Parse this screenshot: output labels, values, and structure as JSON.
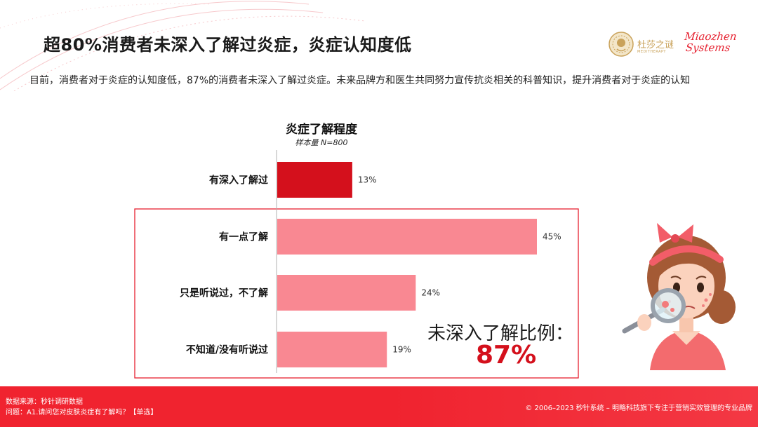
{
  "slide": {
    "title": "超80%消费者未深入了解过炎症，炎症认知度低",
    "subtitle": "目前，消费者对于炎症的认知度低，87%的消费者未深入了解过炎症。未来品牌方和医生共同努力宣传抗炎相关的科普知识，提升消费者对于炎症的认知"
  },
  "logos": {
    "dsz_name": "杜莎之谜",
    "dsz_sub": "MEDITHERAPY",
    "mz_line1": "Miaozhen",
    "mz_line2": "Systems"
  },
  "chart_data": {
    "type": "bar",
    "orientation": "horizontal",
    "title": "炎症了解程度",
    "subtitle": "样本量 N=800",
    "categories": [
      "有深入了解过",
      "有一点了解",
      "只是听说过，不了解",
      "不知道/没有听说过"
    ],
    "values": [
      13,
      45,
      24,
      19
    ],
    "value_labels": [
      "13%",
      "45%",
      "24%",
      "19%"
    ],
    "unit": "%",
    "xlim": [
      0,
      65
    ],
    "grid": false,
    "colors": [
      "#d4101c",
      "#f98892",
      "#f98892",
      "#f98892"
    ]
  },
  "callout": {
    "label": "未深入了解比例：",
    "value": "87%"
  },
  "footer": {
    "source": "数据来源：秒针调研数据",
    "question": "问题：A1.请问您对皮肤炎症有了解吗？【单选】",
    "copyright": "© 2006–2023 秒针系统 – 明略科技旗下专注于营销实效管理的专业品牌"
  },
  "colors": {
    "accent": "#e6202f",
    "highlight_bar": "#d4101c",
    "bar": "#f98892",
    "callout_value": "#d4101c",
    "footer_bg": "#f0232f"
  }
}
